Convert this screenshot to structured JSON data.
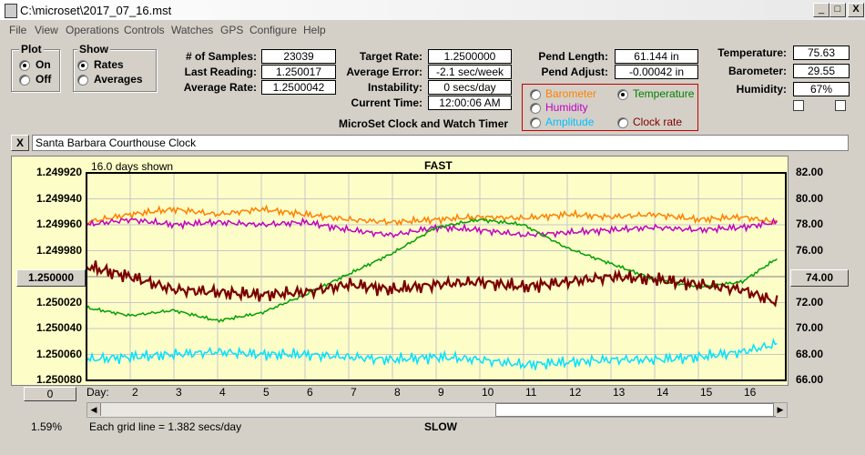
{
  "window": {
    "title": "C:\\microset\\2017_07_16.mst",
    "min": "_",
    "max": "□",
    "close": "X"
  },
  "menu": [
    "File",
    "View",
    "Operations",
    "Controls",
    "Watches",
    "GPS",
    "Configure",
    "Help"
  ],
  "plot_group": {
    "label": "Plot",
    "options": [
      "On",
      "Off"
    ],
    "selected": "On"
  },
  "show_group": {
    "label": "Show",
    "options": [
      "Rates",
      "Averages"
    ],
    "selected": "Rates"
  },
  "stats": {
    "samples_label": "# of Samples:",
    "samples": "23039",
    "last_label": "Last Reading:",
    "last": "1.250017",
    "avg_rate_label": "Average Rate:",
    "avg_rate": "1.2500042"
  },
  "rates": {
    "target_label": "Target Rate:",
    "target": "1.2500000",
    "avg_err_label": "Average Error:",
    "avg_err": "-2.1 sec/week",
    "instab_label": "Instability:",
    "instab": "0 secs/day",
    "time_label": "Current Time:",
    "time": "12:00:06 AM"
  },
  "app_name": "MicroSet Clock and Watch Timer",
  "pend": {
    "length_label": "Pend Length:",
    "length": "61.144 in",
    "adjust_label": "Pend Adjust:",
    "adjust": "-0.00042 in"
  },
  "env": {
    "temp_label": "Temperature:",
    "temp": "75.63",
    "baro_label": "Barometer:",
    "baro": "29.55",
    "hum_label": "Humidity:",
    "hum": "67%"
  },
  "series_select": {
    "options": [
      {
        "label": "Barometer",
        "color": "#ff8000",
        "selected": false
      },
      {
        "label": "Temperature",
        "color": "#008000",
        "selected": true
      },
      {
        "label": "Humidity",
        "color": "#c000c0",
        "selected": false
      },
      {
        "label": "Clock rate",
        "color": "#800000",
        "selected": false
      },
      {
        "label": "Amplitude",
        "color": "#00c0ff",
        "selected": false
      }
    ]
  },
  "clock_name": "Santa Barbara Courthouse Clock",
  "clear_btn": "X",
  "chart": {
    "days_shown": "16.0 days shown",
    "top_label": "FAST",
    "bottom_label": "SLOW",
    "grid_note": "Each grid line = 1.382 secs/day",
    "percent": "1.59%",
    "left_ticks": [
      "1.249920",
      "1.249940",
      "1.249960",
      "1.249980",
      "1.250000",
      "1.250020",
      "1.250040",
      "1.250060",
      "1.250080"
    ],
    "center_btn": "1.250000",
    "zero_btn": "0",
    "right_ticks": [
      "82.00",
      "80.00",
      "78.00",
      "76.00",
      "74.00",
      "72.00",
      "70.00",
      "68.00",
      "66.00"
    ],
    "right_btn": "74.00",
    "day_label": "Day:",
    "days": [
      "2",
      "3",
      "4",
      "5",
      "6",
      "7",
      "8",
      "9",
      "10",
      "11",
      "12",
      "13",
      "14",
      "15",
      "16"
    ]
  },
  "chart_data": {
    "type": "line",
    "x_range": [
      1,
      17
    ],
    "left_axis_range": [
      1.25008,
      1.24992
    ],
    "right_axis_range": [
      66,
      82
    ],
    "series": [
      {
        "color": "#ff8000",
        "axis": "right",
        "x": [
          1,
          2,
          3,
          4,
          5,
          6,
          7,
          8,
          9,
          10,
          11,
          12,
          13,
          14,
          15,
          16,
          16.8
        ],
        "y": [
          78.2,
          78.8,
          79.2,
          78.8,
          79.2,
          78.8,
          78.4,
          78.2,
          78.4,
          78.6,
          78.5,
          78.8,
          78.6,
          78.8,
          78.4,
          78.6,
          78.2
        ]
      },
      {
        "color": "#c000c0",
        "axis": "right",
        "x": [
          1,
          2,
          3,
          4,
          5,
          6,
          7,
          8,
          9,
          10,
          11,
          12,
          13,
          14,
          15,
          16,
          16.8
        ],
        "y": [
          78.0,
          78.4,
          78.0,
          78.2,
          78.0,
          78.2,
          77.6,
          77.2,
          77.8,
          77.6,
          77.2,
          77.4,
          77.6,
          77.8,
          77.6,
          77.8,
          78.2
        ]
      },
      {
        "color": "#00a000",
        "axis": "right",
        "x": [
          1,
          2,
          3,
          4,
          5,
          6,
          7,
          8,
          9,
          10,
          11,
          12,
          13,
          14,
          15,
          16,
          16.8
        ],
        "y": [
          71.6,
          71.0,
          71.4,
          70.6,
          71.2,
          72.6,
          74.2,
          75.8,
          77.8,
          78.4,
          78.0,
          76.2,
          75.0,
          73.8,
          73.2,
          73.6,
          75.4
        ]
      },
      {
        "color": "#7a0000",
        "axis": "left",
        "x": [
          1,
          2,
          3,
          4,
          5,
          6,
          7,
          8,
          9,
          10,
          11,
          12,
          13,
          14,
          15,
          16,
          16.8
        ],
        "y": [
          1.249992,
          1.25,
          1.25001,
          1.250012,
          1.250014,
          1.250012,
          1.250006,
          1.25001,
          1.250006,
          1.250004,
          1.250008,
          1.250004,
          1.25,
          1.250002,
          1.250006,
          1.25001,
          1.25002
        ]
      },
      {
        "color": "#00e0ff",
        "axis": "left",
        "x": [
          1,
          2,
          3,
          4,
          5,
          6,
          7,
          8,
          9,
          10,
          11,
          12,
          13,
          14,
          15,
          16,
          16.8
        ],
        "y": [
          1.250064,
          1.250062,
          1.25006,
          1.250058,
          1.25006,
          1.25006,
          1.250062,
          1.250064,
          1.250062,
          1.250064,
          1.250068,
          1.250066,
          1.250064,
          1.250064,
          1.250062,
          1.250058,
          1.250052
        ]
      }
    ]
  }
}
